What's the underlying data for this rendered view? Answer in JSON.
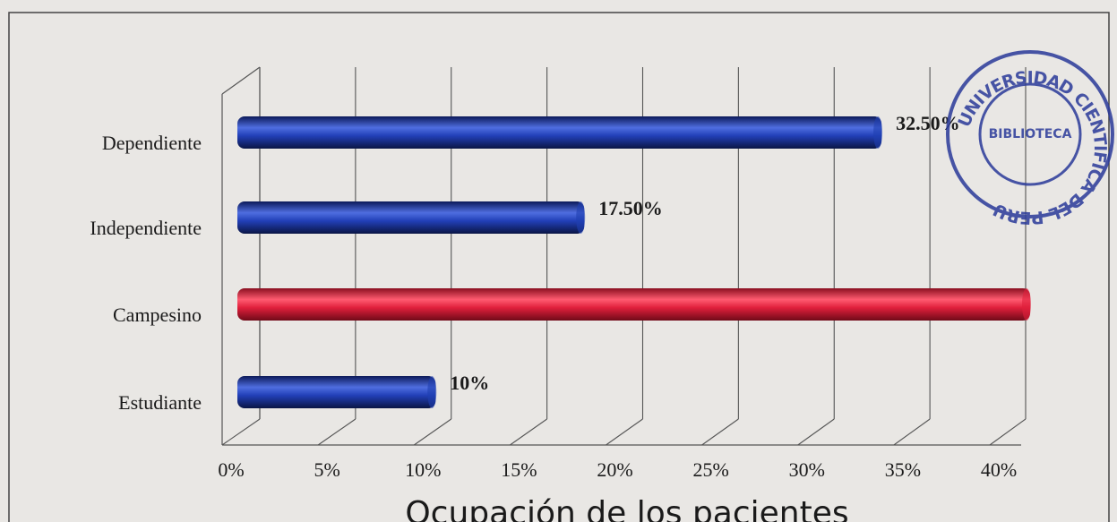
{
  "chart_data": {
    "type": "bar",
    "orientation": "horizontal",
    "title": "Ocupación de los pacientes",
    "categories": [
      "Dependiente",
      "Independiente",
      "Campesino",
      "Estudiante"
    ],
    "values": [
      32.5,
      17.5,
      40,
      10
    ],
    "value_labels": [
      "32.50%",
      "17.50%",
      null,
      "10%"
    ],
    "colors": [
      "#1f3fb0",
      "#1f3fb0",
      "#e0203c",
      "#1f3fb0"
    ],
    "xlim": [
      0,
      40
    ],
    "xticks": [
      {
        "value": 0,
        "label": "0%"
      },
      {
        "value": 5,
        "label": "5%"
      },
      {
        "value": 10,
        "label": "10%"
      },
      {
        "value": 15,
        "label": "15%"
      },
      {
        "value": 20,
        "label": "20%"
      },
      {
        "value": 25,
        "label": "25%"
      },
      {
        "value": 30,
        "label": "30%"
      },
      {
        "value": 35,
        "label": "35%"
      },
      {
        "value": 40,
        "label": "40%"
      }
    ],
    "grid": true
  },
  "stamp": {
    "outer": "UNIVERSIDAD CIENTIFICA DEL PERU",
    "inner": "BIBLIOTECA"
  }
}
